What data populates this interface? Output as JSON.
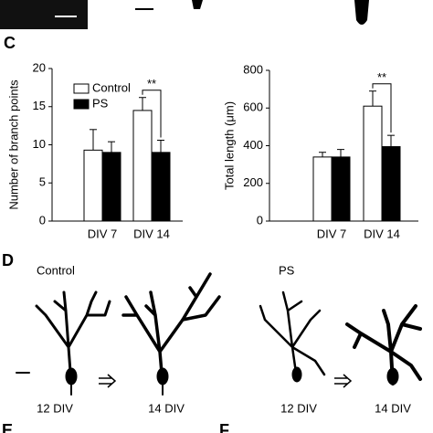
{
  "panel_labels": {
    "c": "C",
    "d": "D",
    "e": "E",
    "f": "F"
  },
  "chart_data": [
    {
      "type": "bar",
      "y_label": "Number of branch points",
      "categories": [
        "DIV 7",
        "DIV 14"
      ],
      "series": [
        {
          "name": "Control",
          "color": "#ffffff",
          "edgecolor": "#000000",
          "values": [
            9.3,
            14.5
          ],
          "errors": [
            2.7,
            1.7
          ]
        },
        {
          "name": "PS",
          "color": "#000000",
          "edgecolor": "#000000",
          "values": [
            9,
            9
          ],
          "errors": [
            1.4,
            1.6
          ]
        }
      ],
      "ylim": [
        0,
        20
      ],
      "yticks": [
        0,
        5,
        10,
        15,
        20
      ],
      "legend": "upper left",
      "annotation": "**"
    },
    {
      "type": "bar",
      "y_label": "Total length (μm)",
      "categories": [
        "DIV 7",
        "DIV 14"
      ],
      "series": [
        {
          "name": "Control",
          "color": "#ffffff",
          "edgecolor": "#000000",
          "values": [
            340,
            610
          ],
          "errors": [
            25,
            80
          ]
        },
        {
          "name": "PS",
          "color": "#000000",
          "edgecolor": "#000000",
          "values": [
            340,
            395
          ],
          "errors": [
            40,
            60
          ]
        }
      ],
      "ylim": [
        0,
        800
      ],
      "yticks": [
        0,
        200,
        400,
        600,
        800
      ],
      "legend": "none",
      "annotation": "**"
    }
  ],
  "panel_d": {
    "conditions": [
      {
        "label": "Control",
        "stages": [
          "12 DIV",
          "14 DIV"
        ]
      },
      {
        "label": "PS",
        "stages": [
          "12 DIV",
          "14 DIV"
        ]
      }
    ]
  }
}
